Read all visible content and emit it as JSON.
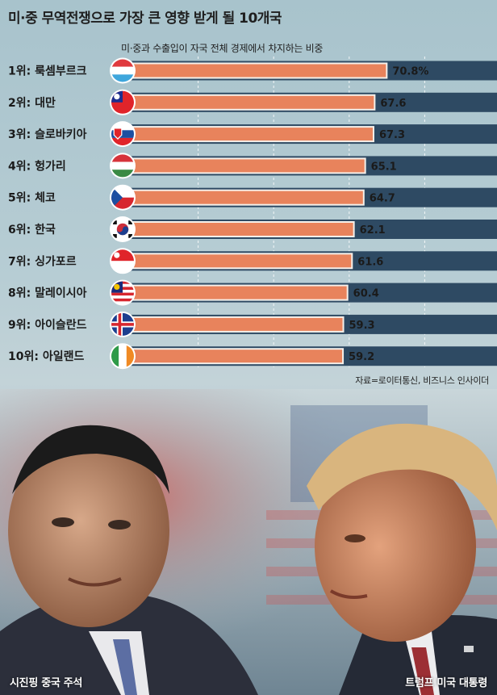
{
  "title": "미·중 무역전쟁으로 가장 큰 영향 받게 될 10개국",
  "subtitle": "미·중과 수출입이 자국 전체 경제에서 차지하는 비중",
  "source": "자료=로이터통신, 비즈니스 인사이더",
  "captions": {
    "left": "시진핑 중국 주석",
    "right": "트럼프 미국 대통령"
  },
  "colors": {
    "bar": "#e8835c",
    "bar_bg": "#2e4a63",
    "grid": "#ffffff"
  },
  "chart_data": {
    "type": "bar",
    "orientation": "horizontal",
    "title": "미·중 무역전쟁으로 가장 큰 영향 받게 될 10개국",
    "subtitle": "미·중과 수출입이 자국 전체 경제에서 차지하는 비중",
    "categories": [
      "1위: 룩셈부르크",
      "2위: 대만",
      "3위: 슬로바키아",
      "4위: 헝가리",
      "5위: 체코",
      "6위: 한국",
      "7위: 싱가포르",
      "8위: 말레이시아",
      "9위: 아이슬란드",
      "10위: 아일랜드"
    ],
    "values": [
      70.8,
      67.6,
      67.3,
      65.1,
      64.7,
      62.1,
      61.6,
      60.4,
      59.3,
      59.2
    ],
    "value_labels": [
      "70.8%",
      "67.6",
      "67.3",
      "65.1",
      "64.7",
      "62.1",
      "61.6",
      "60.4",
      "59.3",
      "59.2"
    ],
    "flags": [
      "luxembourg-flag",
      "taiwan-flag",
      "slovakia-flag",
      "hungary-flag",
      "czech-flag",
      "korea-flag",
      "singapore-flag",
      "malaysia-flag",
      "iceland-flag",
      "ireland-flag"
    ],
    "xlim": [
      0,
      100
    ],
    "grid": true
  }
}
